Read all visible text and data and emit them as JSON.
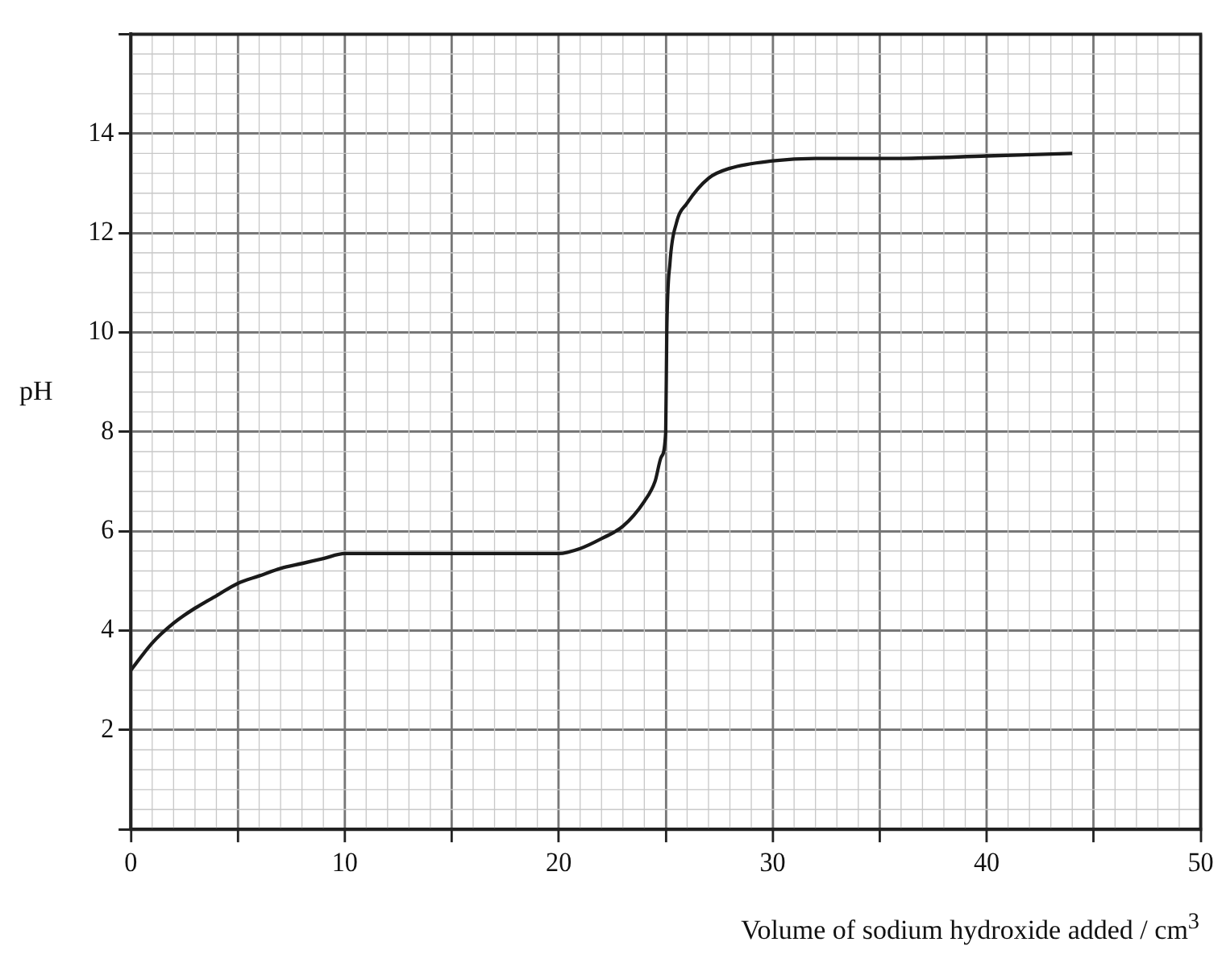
{
  "chart_data": {
    "type": "line",
    "xlabel": "Volume of sodium hydroxide added / cm$^{3}$",
    "ylabel": "pH",
    "xlim": [
      0,
      50
    ],
    "ylim": [
      0,
      16
    ],
    "xticks": [
      0,
      {
        "value": 5,
        "label": null
      },
      10,
      {
        "value": 15,
        "label": null
      },
      20,
      {
        "value": 25,
        "label": null
      },
      30,
      {
        "value": 35,
        "label": null
      },
      40,
      {
        "value": 45,
        "label": null
      },
      50
    ],
    "yticks": [
      {
        "value": 0,
        "label": null
      },
      2,
      4,
      6,
      8,
      10,
      12,
      14,
      {
        "value": 16,
        "label": null
      }
    ],
    "grid": true,
    "legend": false,
    "marker": "none",
    "line_style": "solid",
    "series": [
      {
        "color": "#1a1a1a",
        "x": [
          0,
          1,
          2,
          3,
          4,
          5,
          6,
          7,
          8,
          9,
          10,
          20,
          21,
          22,
          23,
          24,
          24.5,
          24.8,
          25,
          25.05,
          25.2,
          25.5,
          26,
          27,
          28,
          30,
          32,
          36,
          40,
          44
        ],
        "values": [
          3.2,
          3.75,
          4.15,
          4.45,
          4.7,
          4.95,
          5.1,
          5.25,
          5.35,
          5.45,
          5.55,
          5.55,
          5.65,
          5.85,
          6.1,
          6.6,
          7.0,
          7.5,
          8.0,
          10.0,
          11.4,
          12.2,
          12.6,
          13.1,
          13.3,
          13.45,
          13.5,
          13.5,
          13.55,
          13.6
        ]
      }
    ]
  }
}
